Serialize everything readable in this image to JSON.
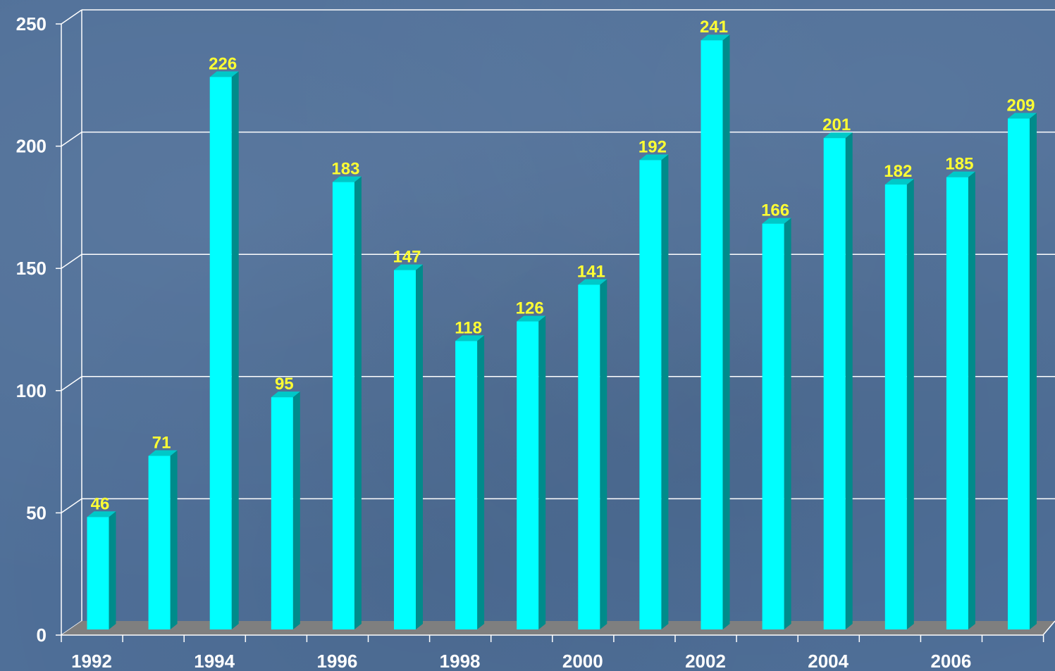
{
  "chart_data": {
    "type": "bar",
    "categories": [
      "1992",
      "1993",
      "1994",
      "1995",
      "1996",
      "1997",
      "1998",
      "1999",
      "2000",
      "2001",
      "2002",
      "2003",
      "2004",
      "2005",
      "2006",
      "2007"
    ],
    "values": [
      46,
      71,
      226,
      95,
      183,
      147,
      118,
      126,
      141,
      192,
      241,
      166,
      201,
      182,
      185,
      209
    ],
    "x_tick_labels": [
      "1992",
      "1994",
      "1996",
      "1998",
      "2000",
      "2002",
      "2004",
      "2006"
    ],
    "y_ticks": [
      0,
      50,
      100,
      150,
      200,
      250
    ],
    "ylim": [
      0,
      250
    ],
    "grid": true,
    "colors": {
      "bar_front": "#00ffff",
      "bar_side": "#008b8b",
      "bar_top": "#00c8c8",
      "value_label": "#ffff33",
      "axis_text": "#ffffff",
      "floor": "#7f7f7f"
    }
  }
}
